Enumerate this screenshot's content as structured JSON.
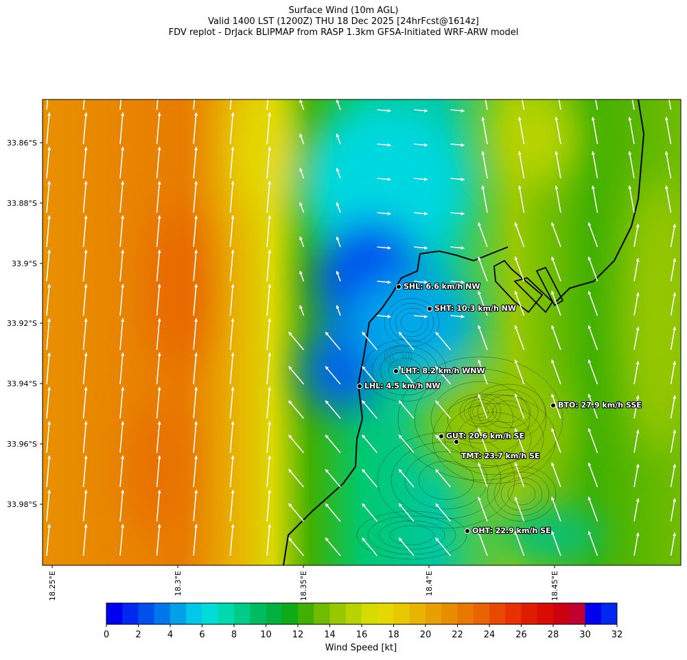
{
  "title": {
    "line1": "Surface Wind (10m AGL)",
    "line2": "Valid 1400 LST (1200Z) THU 18 Dec 2025 [24hrFcst@1614z]",
    "line3": "FDV replot - DrJack BLIPMAP from RASP 1.3km GFSA-Initiated WRF-ARW model"
  },
  "map": {
    "lat_ticks": [
      "33.86°S",
      "33.88°S",
      "33.9°S",
      "33.92°S",
      "33.94°S",
      "33.96°S",
      "33.98°S"
    ],
    "lon_ticks": [
      "18.25°E",
      "18.3°E",
      "18.35°E",
      "18.4°E",
      "18.45°E"
    ],
    "land_color": "#000000",
    "arrow_color": "#ffffff"
  },
  "stations": [
    {
      "id": "SHL",
      "label": "SHL: 6.6 km/h NW",
      "speed_kmh": 6.6,
      "dir": "NW"
    },
    {
      "id": "SHT",
      "label": "SHT: 10.3 km/h NW",
      "speed_kmh": 10.3,
      "dir": "NW"
    },
    {
      "id": "LHT",
      "label": "LHT: 8.2 km/h WNW",
      "speed_kmh": 8.2,
      "dir": "WNW"
    },
    {
      "id": "LHL",
      "label": "LHL: 4.5 km/h NW",
      "speed_kmh": 4.5,
      "dir": "NW"
    },
    {
      "id": "BTO",
      "label": "BTO: 27.9 km/h SSE",
      "speed_kmh": 27.9,
      "dir": "SSE"
    },
    {
      "id": "GUT",
      "label": "GUT: 20.6 km/h SE",
      "speed_kmh": 20.6,
      "dir": "SE"
    },
    {
      "id": "TMT",
      "label": "TMT: 23.7 km/h SE",
      "speed_kmh": 23.7,
      "dir": "SE"
    },
    {
      "id": "OHT",
      "label": "OHT: 22.9 km/h SE",
      "speed_kmh": 22.9,
      "dir": "SE"
    }
  ],
  "colorbar": {
    "label": "Wind Speed [kt]",
    "min": 0,
    "max": 32,
    "step": 1,
    "ticks": [
      "0",
      "2",
      "4",
      "6",
      "8",
      "10",
      "12",
      "14",
      "16",
      "18",
      "20",
      "22",
      "24",
      "26",
      "28",
      "30",
      "32"
    ],
    "colors": [
      "#0000f0",
      "#0028f0",
      "#0050ee",
      "#0078ec",
      "#00a0ea",
      "#00c8e8",
      "#00dcd8",
      "#00d8b0",
      "#00cc88",
      "#00bc60",
      "#00b040",
      "#10aa18",
      "#40b000",
      "#70bc00",
      "#98c800",
      "#b8d400",
      "#d4dc00",
      "#e4d800",
      "#e8c800",
      "#e8b400",
      "#e8a000",
      "#e88c00",
      "#e87800",
      "#e86400",
      "#e84800",
      "#e83000",
      "#e01c00",
      "#d80c00",
      "#cc0010",
      "#c00030"
    ]
  }
}
